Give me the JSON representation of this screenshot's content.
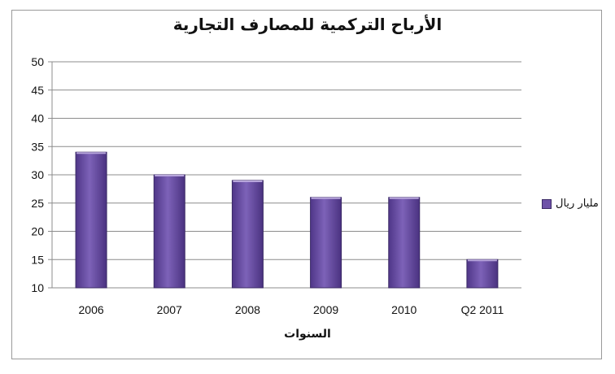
{
  "chart_data": {
    "type": "bar",
    "title": "الأرباح التركمية للمصارف التجارية",
    "xlabel": "السنوات",
    "ylabel": "",
    "categories": [
      "2006",
      "2007",
      "2008",
      "2009",
      "2010",
      "Q2 2011"
    ],
    "series": [
      {
        "name": "مليار ريال",
        "values": [
          34,
          30,
          29,
          26,
          26,
          15
        ]
      }
    ],
    "ylim": [
      10,
      50
    ],
    "yticks": [
      10,
      15,
      20,
      25,
      30,
      35,
      40,
      45,
      50
    ],
    "grid": true,
    "legend": "right",
    "bar_color": "#6e52a8"
  }
}
